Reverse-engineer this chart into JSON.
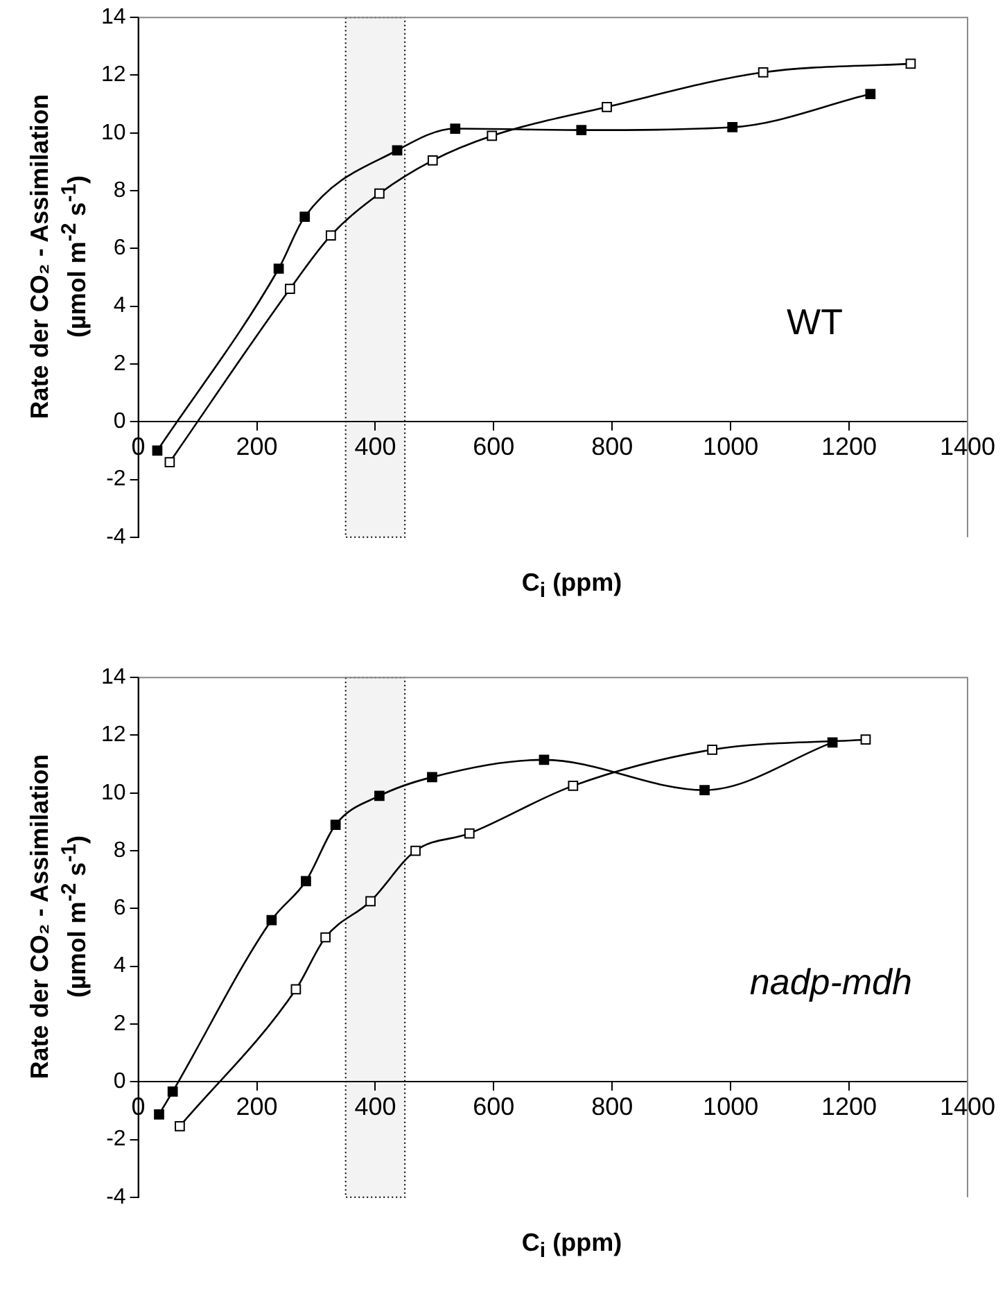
{
  "chart_data": [
    {
      "type": "line",
      "xlabel": "C$_{i}$ (ppm)",
      "ylabel": "Rate der CO₂ - Assimilation\n(µmol m$^{-2}$ s$^{-1}$)",
      "xlim": [
        0,
        1400
      ],
      "xticks": [
        0,
        200,
        400,
        600,
        800,
        1000,
        1200,
        1400
      ],
      "ylim": [
        -4,
        14
      ],
      "yticks": [
        -4,
        -2,
        0,
        2,
        4,
        6,
        8,
        10,
        12,
        14
      ],
      "grid": false,
      "legend": false,
      "marker": "square",
      "line_style": "solid",
      "annotations": [
        "WT"
      ],
      "bands": [
        {
          "axis": "x",
          "from": 350,
          "to": 450,
          "color": "#f3f3f3"
        }
      ],
      "series": [
        {
          "color": "#000000",
          "x": [
            32,
            237,
            281,
            437,
            535,
            748,
            1003,
            1236
          ],
          "values": [
            -1.0,
            5.3,
            7.1,
            9.4,
            10.15,
            10.1,
            10.2,
            11.35
          ]
        },
        {
          "color": "#ffffff",
          "x": [
            53,
            256,
            325,
            407,
            497,
            597,
            791,
            1055,
            1304
          ],
          "values": [
            -1.4,
            4.6,
            6.45,
            7.9,
            9.05,
            9.9,
            10.9,
            12.1,
            12.4
          ]
        }
      ]
    },
    {
      "type": "line",
      "xlabel": "C$_{i}$ (ppm)",
      "ylabel": "Rate der CO₂ - Assimilation\n(µmol m$^{-2}$ s$^{-1}$)",
      "xlim": [
        0,
        1400
      ],
      "xticks": [
        0,
        200,
        400,
        600,
        800,
        1000,
        1200,
        1400
      ],
      "ylim": [
        -4,
        14
      ],
      "yticks": [
        -4,
        -2,
        0,
        2,
        4,
        6,
        8,
        10,
        12,
        14
      ],
      "grid": false,
      "legend": false,
      "marker": "square",
      "line_style": "solid",
      "annotations": [
        "nadp-mdh"
      ],
      "bands": [
        {
          "axis": "x",
          "from": 350,
          "to": 450,
          "color": "#f3f3f3"
        }
      ],
      "series": [
        {
          "color": "#000000",
          "x": [
            35,
            58,
            225,
            283,
            333,
            407,
            496,
            685,
            956,
            1172
          ],
          "values": [
            -1.13,
            -0.34,
            5.6,
            6.95,
            8.9,
            9.9,
            10.55,
            11.15,
            10.1,
            11.75
          ]
        },
        {
          "color": "#ffffff",
          "x": [
            70,
            266,
            316,
            392,
            468,
            559,
            734,
            969,
            1228
          ],
          "values": [
            -1.54,
            3.2,
            5.0,
            6.25,
            8.0,
            8.6,
            10.25,
            11.5,
            11.85
          ]
        }
      ]
    }
  ]
}
